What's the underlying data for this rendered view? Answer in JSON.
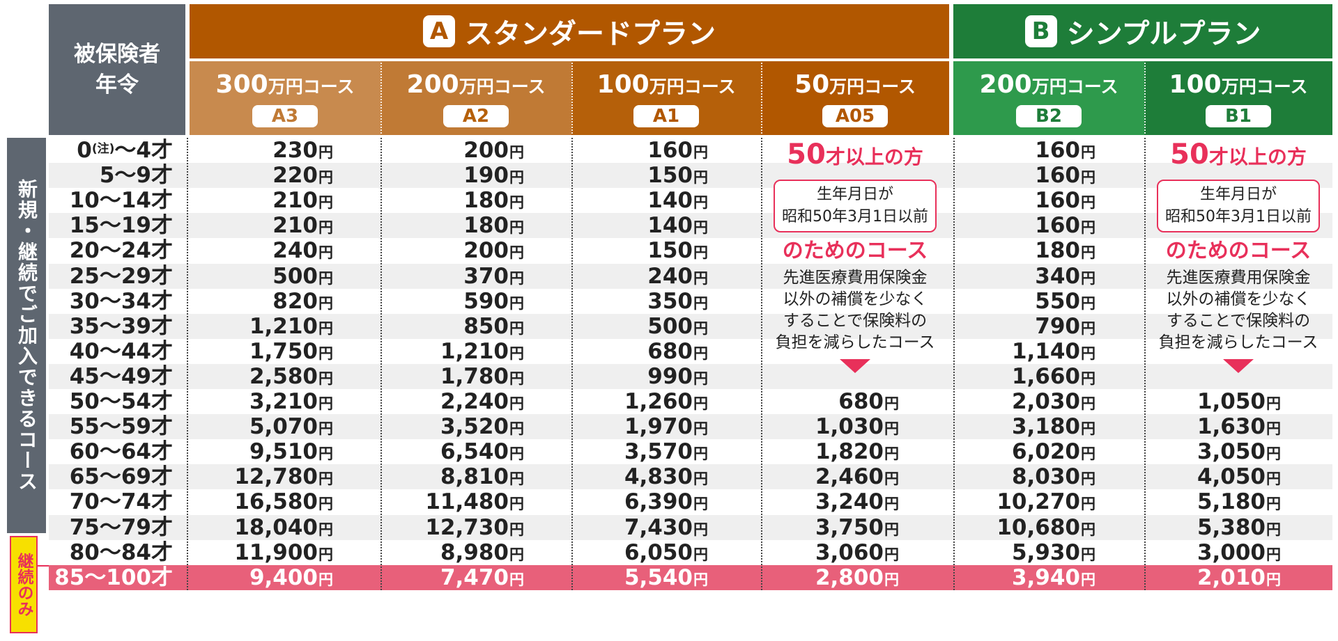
{
  "header": {
    "age_label_1": "被保険者",
    "age_label_2": "年令",
    "plan_a": {
      "letter": "A",
      "name": "スタンダードプラン"
    },
    "plan_b": {
      "letter": "B",
      "name": "シンプルプラン"
    },
    "courses": [
      {
        "amount": "300",
        "unit": "万円コース",
        "code": "A3"
      },
      {
        "amount": "200",
        "unit": "万円コース",
        "code": "A2"
      },
      {
        "amount": "100",
        "unit": "万円コース",
        "code": "A1"
      },
      {
        "amount": "50",
        "unit": "万円コース",
        "code": "A05"
      },
      {
        "amount": "200",
        "unit": "万円コース",
        "code": "B2"
      },
      {
        "amount": "100",
        "unit": "万円コース",
        "code": "B1"
      }
    ]
  },
  "side": {
    "new_continue": "新規・継続でご加入できるコース",
    "continue_only": "継続のみ"
  },
  "yen": "円",
  "ages": [
    "0",
    "5〜9才",
    "10〜14才",
    "15〜19才",
    "20〜24才",
    "25〜29才",
    "30〜34才",
    "35〜39才",
    "40〜44才",
    "45〜49才",
    "50〜54才",
    "55〜59才",
    "60〜64才",
    "65〜69才",
    "70〜74才",
    "75〜79才",
    "80〜84才",
    "85〜100才"
  ],
  "age0_note": "(注)",
  "age0_suffix": "〜4才",
  "rows": [
    [
      "230",
      "200",
      "160",
      "",
      "160",
      ""
    ],
    [
      "220",
      "190",
      "150",
      "",
      "160",
      ""
    ],
    [
      "210",
      "180",
      "140",
      "",
      "160",
      ""
    ],
    [
      "210",
      "180",
      "140",
      "",
      "160",
      ""
    ],
    [
      "240",
      "200",
      "150",
      "",
      "180",
      ""
    ],
    [
      "500",
      "370",
      "240",
      "",
      "340",
      ""
    ],
    [
      "820",
      "590",
      "350",
      "",
      "550",
      ""
    ],
    [
      "1,210",
      "850",
      "500",
      "",
      "790",
      ""
    ],
    [
      "1,750",
      "1,210",
      "680",
      "",
      "1,140",
      ""
    ],
    [
      "2,580",
      "1,780",
      "990",
      "",
      "1,660",
      ""
    ],
    [
      "3,210",
      "2,240",
      "1,260",
      "680",
      "2,030",
      "1,050"
    ],
    [
      "5,070",
      "3,520",
      "1,970",
      "1,030",
      "3,180",
      "1,630"
    ],
    [
      "9,510",
      "6,540",
      "3,570",
      "1,820",
      "6,020",
      "3,050"
    ],
    [
      "12,780",
      "8,810",
      "4,830",
      "2,460",
      "8,030",
      "4,050"
    ],
    [
      "16,580",
      "11,480",
      "6,390",
      "3,240",
      "10,270",
      "5,180"
    ],
    [
      "18,040",
      "12,730",
      "7,430",
      "3,750",
      "10,680",
      "5,380"
    ],
    [
      "11,900",
      "8,980",
      "6,050",
      "3,060",
      "5,930",
      "3,000"
    ],
    [
      "9,400",
      "7,470",
      "5,540",
      "2,800",
      "3,940",
      "2,010"
    ]
  ],
  "note": {
    "big_num": "50",
    "big_rest": "才以上の方",
    "box_line1": "生年月日が",
    "box_line2": "昭和50年3月1日以前",
    "sub": "のためのコース",
    "desc1": "先進医療費用保険金",
    "desc2": "以外の補償を少なく",
    "desc3": "することで保険料の",
    "desc4": "負担を減らしたコース"
  }
}
